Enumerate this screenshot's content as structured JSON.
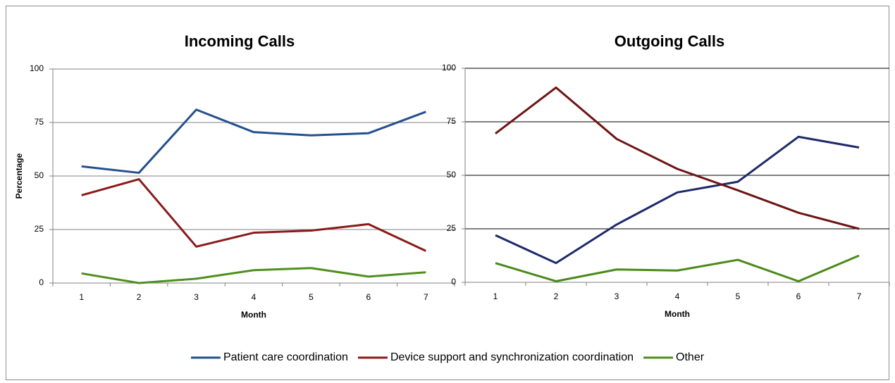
{
  "chart_data": [
    {
      "type": "line",
      "title": "Incoming Calls",
      "x_label": "Month",
      "y_label": "Percentage",
      "categories": [
        1,
        2,
        3,
        4,
        5,
        6,
        7
      ],
      "ylim": [
        0,
        100
      ],
      "yticks": [
        0,
        25,
        50,
        75,
        100
      ],
      "grid": true,
      "grid_color": "#808080",
      "series": [
        {
          "name": "Patient care coordination",
          "color": "#24508f",
          "values": [
            54.5,
            51.5,
            81,
            70.5,
            69,
            70,
            80
          ]
        },
        {
          "name": "Device support and synchronization coordination",
          "color": "#8b1a1a",
          "values": [
            41,
            48.5,
            17,
            23.5,
            24.5,
            27.5,
            15
          ]
        },
        {
          "name": "Other",
          "color": "#4f8f1e",
          "values": [
            4.5,
            0,
            2,
            6,
            7,
            3,
            5
          ]
        }
      ]
    },
    {
      "type": "line",
      "title": "Outgoing Calls",
      "x_label": "Month",
      "categories": [
        1,
        2,
        3,
        4,
        5,
        6,
        7
      ],
      "ylim": [
        0,
        100
      ],
      "yticks": [
        0,
        25,
        50,
        75,
        100
      ],
      "grid": true,
      "grid_color": "#000000",
      "series": [
        {
          "name": "Patient care coordination",
          "color": "#1c2a6b",
          "values": [
            22,
            9,
            27,
            42,
            47,
            68,
            63
          ]
        },
        {
          "name": "Device support and synchronization coordination",
          "color": "#6e1414",
          "values": [
            69.5,
            91,
            67,
            53,
            43,
            32.5,
            25
          ]
        },
        {
          "name": "Other",
          "color": "#4a8a1a",
          "values": [
            9,
            0.5,
            6,
            5.5,
            10.5,
            0.5,
            12.5
          ]
        }
      ]
    }
  ]
}
